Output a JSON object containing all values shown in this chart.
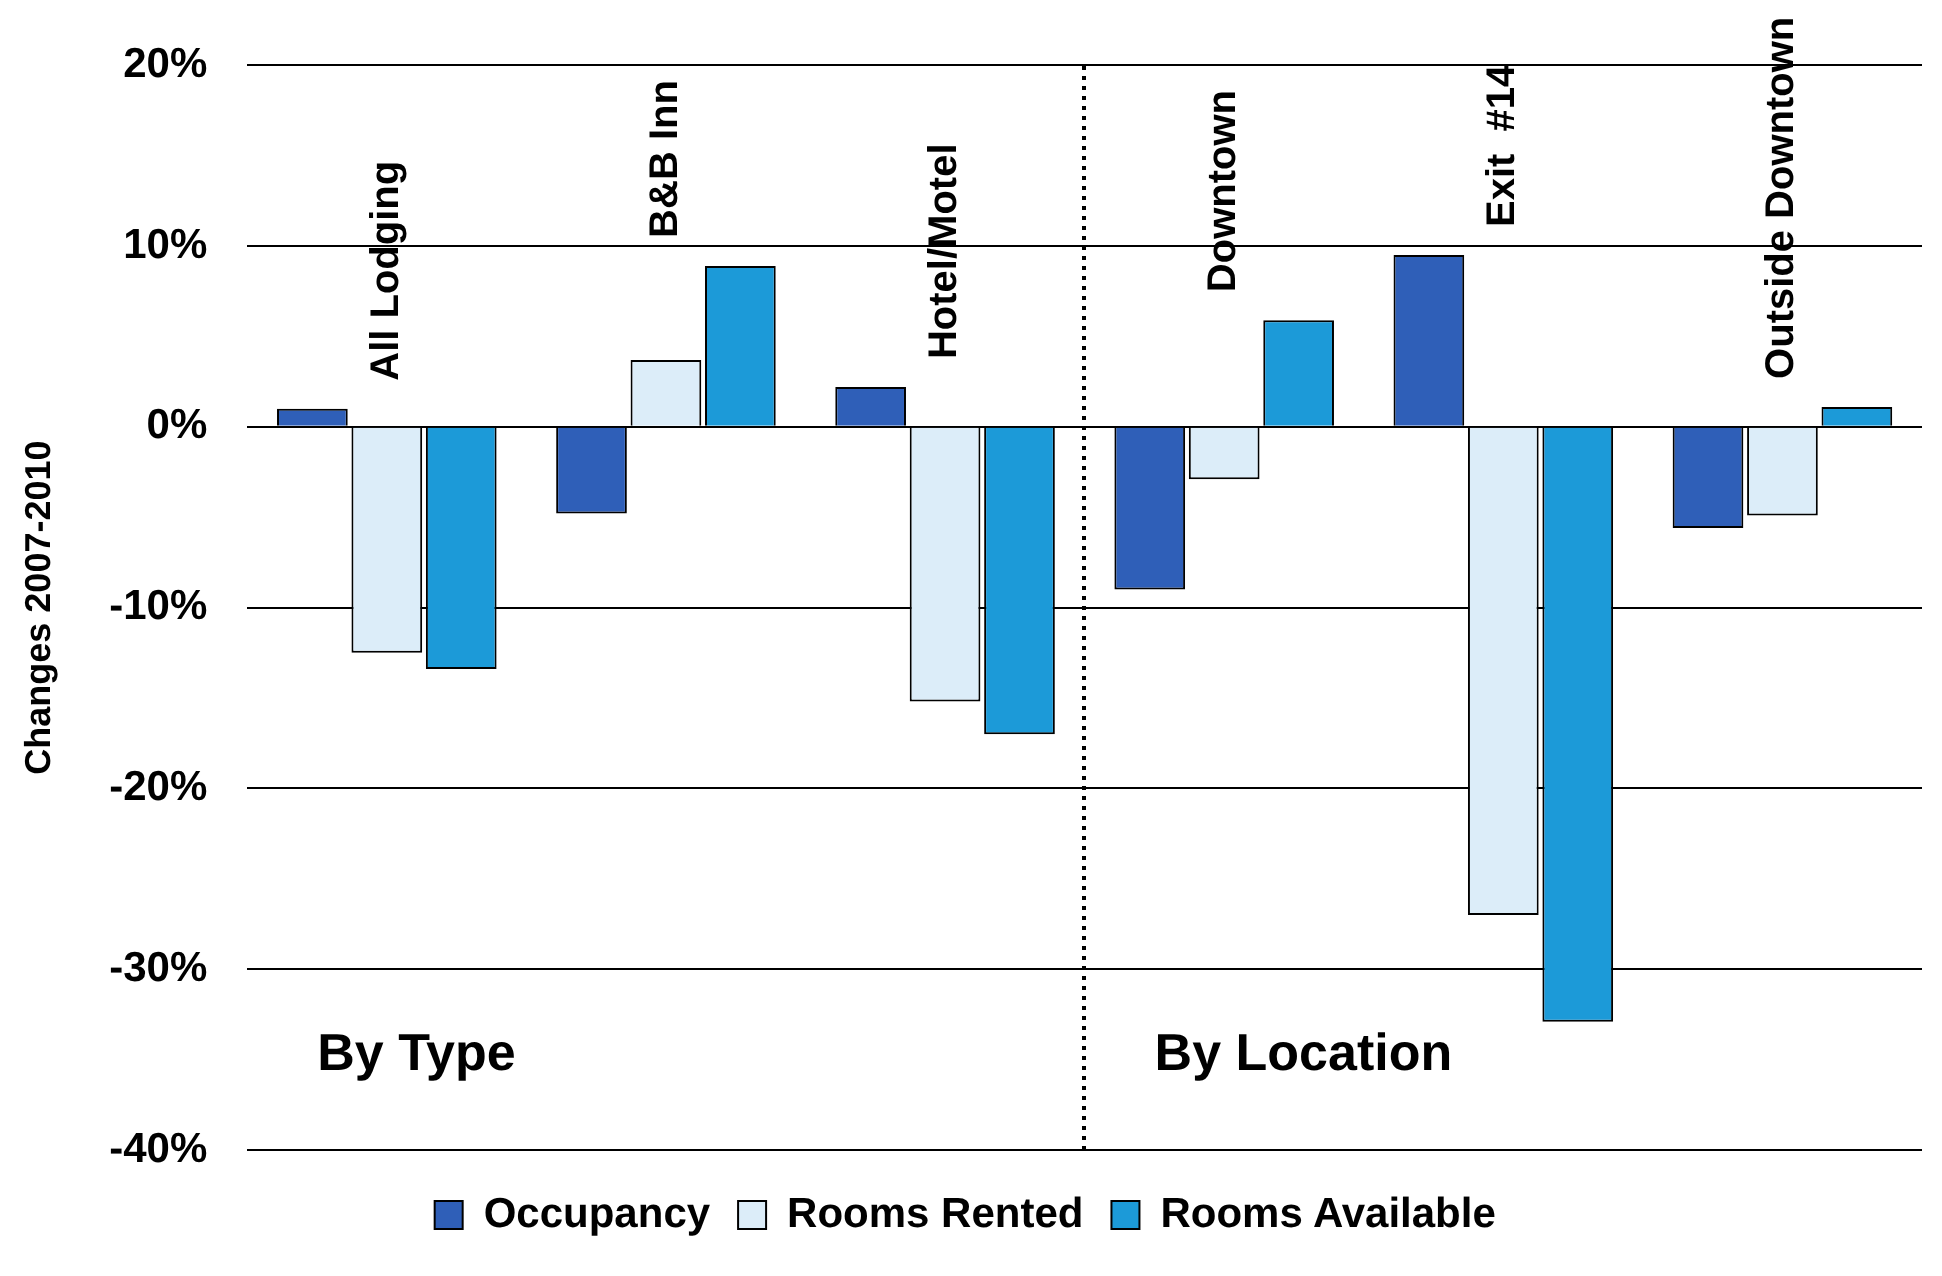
{
  "chart_data": {
    "type": "bar",
    "ylabel": "Changes 2007-2010",
    "categories": [
      "All Lodging",
      "B&B Inn",
      "Hotel/Motel",
      "Downtown",
      "Exit  #14",
      "Outside Downtown"
    ],
    "series": [
      {
        "name": "Occupancy",
        "color": "#2f5fb8",
        "values": [
          1.0,
          -4.8,
          2.2,
          -9.0,
          9.5,
          -5.6
        ]
      },
      {
        "name": "Rooms Rented",
        "color": "#dcedf9",
        "values": [
          -12.5,
          3.7,
          -15.2,
          -2.9,
          -27.0,
          -4.9
        ]
      },
      {
        "name": "Rooms Available",
        "color": "#1c9ad8",
        "values": [
          -13.4,
          8.9,
          -17.0,
          5.9,
          -32.9,
          1.1
        ]
      }
    ],
    "ylim": [
      -40,
      20
    ],
    "yticks": [
      {
        "value": -40,
        "label": "-40%"
      },
      {
        "value": -30,
        "label": "-30%"
      },
      {
        "value": -20,
        "label": "-20%"
      },
      {
        "value": -10,
        "label": "-10%"
      },
      {
        "value": 0,
        "label": "0%"
      },
      {
        "value": 10,
        "label": "10%"
      },
      {
        "value": 20,
        "label": "20%"
      }
    ],
    "grid": "y",
    "legend": "bottom",
    "annotations": [
      "By Type",
      "By Location"
    ]
  }
}
